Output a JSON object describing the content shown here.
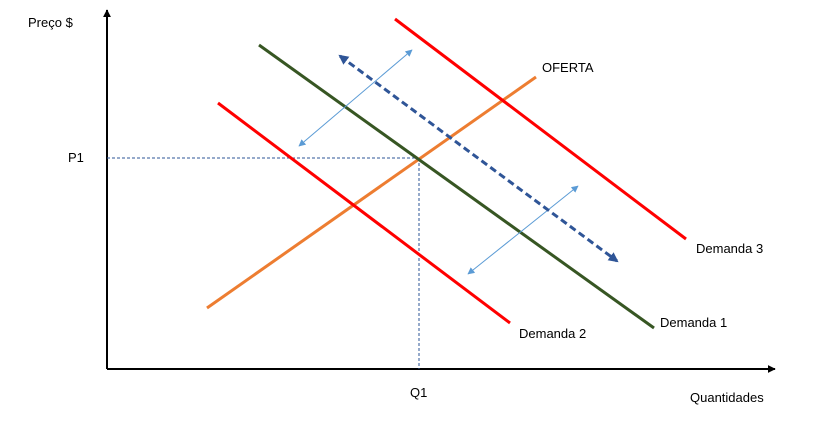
{
  "axes": {
    "y_label": "Preço $",
    "x_label": "Quantidades",
    "p_tick": "P1",
    "q_tick": "Q1"
  },
  "curves": {
    "supply": {
      "label": "OFERTA",
      "color": "#ed7d31"
    },
    "demand1": {
      "label": "Demanda 1",
      "color": "#375623"
    },
    "demand2": {
      "label": "Demanda 2",
      "color": "#ff0000"
    },
    "demand3": {
      "label": "Demanda 3",
      "color": "#ff0000"
    }
  },
  "colors": {
    "axis": "#000000",
    "guide": "#2e5597",
    "shift_arrow_thin": "#5b9bd5",
    "shift_arrow_dashed": "#2f5597"
  }
}
